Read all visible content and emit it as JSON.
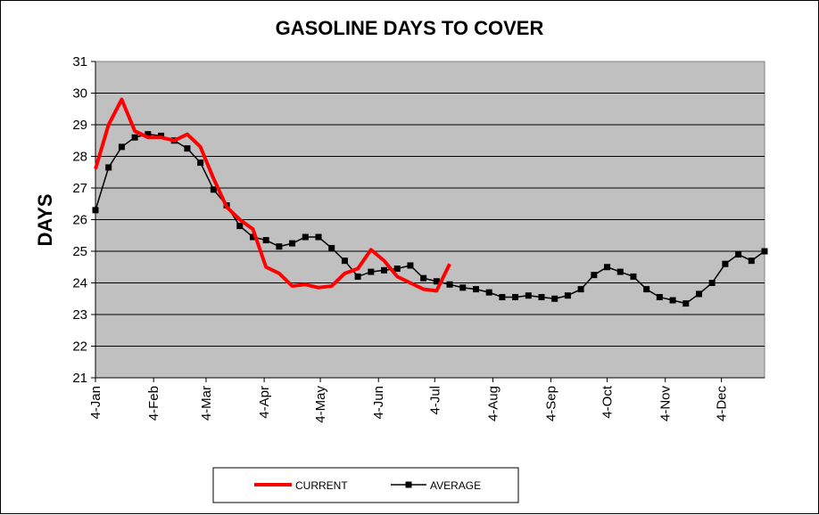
{
  "chart_data": {
    "type": "line",
    "title": "GASOLINE DAYS TO COVER",
    "xlabel": "",
    "ylabel": "DAYS",
    "ylim": [
      21,
      31
    ],
    "yticks": [
      "21",
      "22",
      "23",
      "24",
      "25",
      "26",
      "27",
      "28",
      "29",
      "30",
      "31"
    ],
    "xlim": [
      0,
      51
    ],
    "xtick_labels": [
      "4-Jan",
      "4-Feb",
      "4-Mar",
      "4-Apr",
      "4-May",
      "4-Jun",
      "4-Jul",
      "4-Aug",
      "4-Sep",
      "4-Oct",
      "4-Nov",
      "4-Dec"
    ],
    "xtick_weeks": [
      0,
      4.43,
      8.43,
      12.86,
      17.14,
      21.57,
      25.86,
      30.29,
      34.71,
      39.0,
      43.43,
      47.71
    ],
    "grid": true,
    "legend_position": "bottom",
    "series": [
      {
        "name": "CURRENT",
        "color": "#ff0000",
        "marker": "none",
        "x": [
          0,
          1,
          2,
          3,
          4,
          5,
          6,
          7,
          8,
          9,
          10,
          11,
          12,
          13,
          14,
          15,
          16,
          17,
          18,
          19,
          20,
          21,
          22,
          23,
          24,
          25,
          26,
          27
        ],
        "values": [
          27.6,
          29.0,
          29.8,
          28.8,
          28.6,
          28.6,
          28.5,
          28.7,
          28.3,
          27.3,
          26.4,
          26.0,
          25.7,
          24.5,
          24.3,
          23.9,
          23.95,
          23.85,
          23.9,
          24.3,
          24.45,
          25.05,
          24.7,
          24.2,
          24.0,
          23.8,
          23.75,
          24.6
        ]
      },
      {
        "name": "AVERAGE",
        "color": "#000000",
        "marker": "square",
        "x": [
          0,
          1,
          2,
          3,
          4,
          5,
          6,
          7,
          8,
          9,
          10,
          11,
          12,
          13,
          14,
          15,
          16,
          17,
          18,
          19,
          20,
          21,
          22,
          23,
          24,
          25,
          26,
          27,
          28,
          29,
          30,
          31,
          32,
          33,
          34,
          35,
          36,
          37,
          38,
          39,
          40,
          41,
          42,
          43,
          44,
          45,
          46,
          47,
          48,
          49,
          50,
          51
        ],
        "values": [
          26.3,
          27.65,
          28.3,
          28.6,
          28.7,
          28.65,
          28.5,
          28.25,
          27.8,
          26.95,
          26.45,
          25.8,
          25.45,
          25.35,
          25.15,
          25.25,
          25.45,
          25.45,
          25.1,
          24.7,
          24.2,
          24.35,
          24.4,
          24.45,
          24.55,
          24.15,
          24.05,
          23.95,
          23.85,
          23.8,
          23.7,
          23.55,
          23.55,
          23.6,
          23.55,
          23.5,
          23.6,
          23.8,
          24.25,
          24.5,
          24.35,
          24.2,
          23.8,
          23.55,
          23.45,
          23.35,
          23.65,
          24.0,
          24.6,
          24.9,
          24.7,
          25.0
        ]
      }
    ]
  }
}
